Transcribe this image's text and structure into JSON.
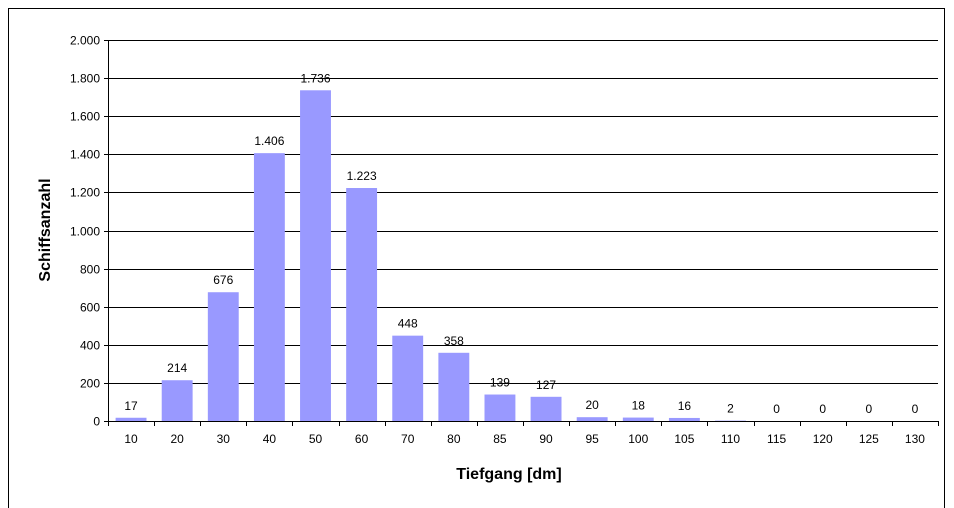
{
  "chart_data": {
    "type": "bar",
    "title": "",
    "xlabel": "Tiefgang [dm]",
    "ylabel": "Schiffsanzahl",
    "categories": [
      "10",
      "20",
      "30",
      "40",
      "50",
      "60",
      "70",
      "80",
      "85",
      "90",
      "95",
      "100",
      "105",
      "110",
      "115",
      "120",
      "125",
      "130"
    ],
    "values": [
      17,
      214,
      676,
      1406,
      1736,
      1223,
      448,
      358,
      139,
      127,
      20,
      18,
      16,
      2,
      0,
      0,
      0,
      0
    ],
    "value_labels": [
      "17",
      "214",
      "676",
      "1.406",
      "1.736",
      "1.223",
      "448",
      "358",
      "139",
      "127",
      "20",
      "18",
      "16",
      "2",
      "0",
      "0",
      "0",
      "0"
    ],
    "ylim": [
      0,
      2000
    ],
    "yticks": [
      0,
      200,
      400,
      600,
      800,
      1000,
      1200,
      1400,
      1600,
      1800,
      2000
    ],
    "ytick_labels": [
      "0",
      "200",
      "400",
      "600",
      "800",
      "1.000",
      "1.200",
      "1.400",
      "1.600",
      "1.800",
      "2.000"
    ],
    "grid": true,
    "legend": false,
    "colors": {
      "bar": "#9999ff",
      "gridline": "#000000",
      "axis": "#000000"
    }
  }
}
